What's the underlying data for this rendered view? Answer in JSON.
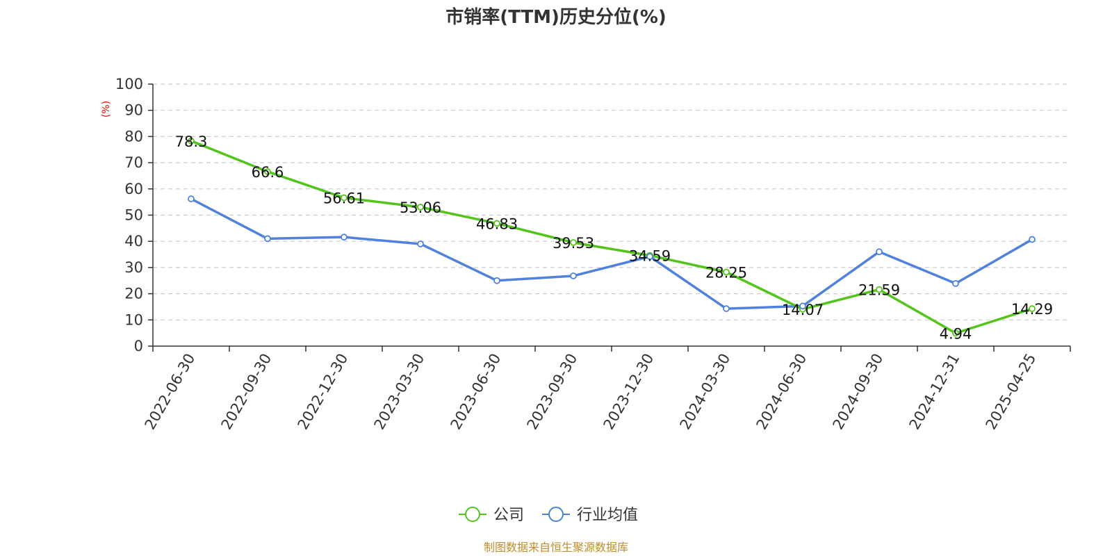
{
  "chart_data": {
    "type": "line",
    "title": "市销率(TTM)历史分位(%)",
    "ylabel": "(%)",
    "ylim": [
      0,
      100
    ],
    "yticks": [
      0,
      10,
      20,
      30,
      40,
      50,
      60,
      70,
      80,
      90,
      100
    ],
    "grid": true,
    "legend_position": "bottom-center",
    "categories": [
      "2022-06-30",
      "2022-09-30",
      "2022-12-30",
      "2023-03-30",
      "2023-06-30",
      "2023-09-30",
      "2023-12-30",
      "2024-03-30",
      "2024-06-30",
      "2024-09-30",
      "2024-12-31",
      "2025-04-25"
    ],
    "series": [
      {
        "name": "公司",
        "color": "#52c41a",
        "values": [
          78.3,
          66.6,
          56.61,
          53.06,
          46.83,
          39.53,
          34.59,
          28.25,
          14.07,
          21.59,
          4.94,
          14.29
        ],
        "labels": [
          "78.3",
          "66.6",
          "56.61",
          "53.06",
          "46.83",
          "39.53",
          "34.59",
          "28.25",
          "14.07",
          "21.59",
          "4.94",
          "14.29"
        ]
      },
      {
        "name": "行业均值",
        "color": "#4f81dd",
        "values": [
          56.2,
          41.0,
          41.6,
          39.0,
          25.0,
          26.8,
          34.2,
          14.3,
          15.3,
          36.0,
          23.9,
          40.7
        ]
      }
    ],
    "source": "制图数据来自恒生聚源数据库",
    "colors": {
      "axis": "#333333",
      "grid": "#cccccc",
      "unit": "#ff0000",
      "source": "#c08c2c"
    }
  }
}
